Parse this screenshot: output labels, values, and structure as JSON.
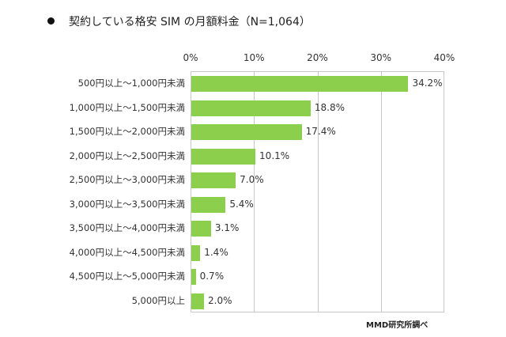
{
  "title": "契約している格安 SIM の月額料金（N=1,064）",
  "source": "MMD研究所調べ",
  "chart_data": {
    "type": "bar",
    "orientation": "horizontal",
    "title": "契約している格安 SIM の月額料金（N=1,064）",
    "xlabel": "",
    "ylabel": "",
    "xlim": [
      0,
      40
    ],
    "x_ticks": [
      "0%",
      "10%",
      "20%",
      "30%",
      "40%"
    ],
    "x_tick_values": [
      0,
      10,
      20,
      30,
      40
    ],
    "grid": true,
    "legend": null,
    "bar_color": "#8ccf4d",
    "categories": [
      "500円以上～1,000円未満",
      "1,000円以上～1,500円未満",
      "1,500円以上～2,000円未満",
      "2,000円以上～2,500円未満",
      "2,500円以上～3,000円未満",
      "3,000円以上～3,500円未満",
      "3,500円以上～4,000円未満",
      "4,000円以上～4,500円未満",
      "4,500円以上～5,000円未満",
      "5,000円以上"
    ],
    "values": [
      34.2,
      18.8,
      17.4,
      10.1,
      7.0,
      5.4,
      3.1,
      1.4,
      0.7,
      2.0
    ],
    "value_labels": [
      "34.2%",
      "18.8%",
      "17.4%",
      "10.1%",
      "7.0%",
      "5.4%",
      "3.1%",
      "1.4%",
      "0.7%",
      "2.0%"
    ],
    "source": "MMD研究所調べ"
  }
}
